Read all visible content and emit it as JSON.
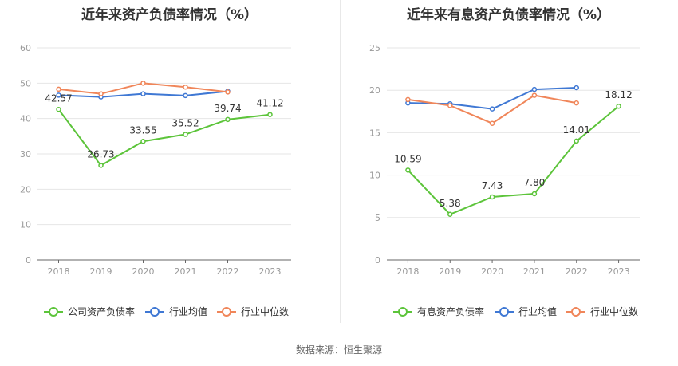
{
  "footer": {
    "source": "数据来源：恒生聚源"
  },
  "chart_data": [
    {
      "type": "line",
      "title": "近年来资产负债率情况（%）",
      "categories": [
        "2018",
        "2019",
        "2020",
        "2021",
        "2022",
        "2023"
      ],
      "ylim": [
        0,
        60
      ],
      "yticks": [
        0,
        10,
        20,
        30,
        40,
        50,
        60
      ],
      "grid": true,
      "legend_position": "bottom",
      "series": [
        {
          "name": "公司资产负债率",
          "color": "#5cc43a",
          "values": [
            42.57,
            26.73,
            33.55,
            35.52,
            39.74,
            41.12
          ],
          "labels": [
            "42.57",
            "26.73",
            "33.55",
            "35.52",
            "39.74",
            "41.12"
          ]
        },
        {
          "name": "行业均值",
          "color": "#3f78d4",
          "values": [
            46.6,
            46.1,
            47.0,
            46.5,
            47.7,
            null
          ]
        },
        {
          "name": "行业中位数",
          "color": "#f0865a",
          "values": [
            48.3,
            47.0,
            50.0,
            48.9,
            47.5,
            null
          ]
        }
      ]
    },
    {
      "type": "line",
      "title": "近年来有息资产负债率情况（%）",
      "categories": [
        "2018",
        "2019",
        "2020",
        "2021",
        "2022",
        "2023"
      ],
      "ylim": [
        0,
        25
      ],
      "yticks": [
        0,
        5,
        10,
        15,
        20,
        25
      ],
      "grid": true,
      "legend_position": "bottom",
      "series": [
        {
          "name": "有息资产负债率",
          "color": "#5cc43a",
          "values": [
            10.59,
            5.38,
            7.43,
            7.8,
            14.01,
            18.12
          ],
          "labels": [
            "10.59",
            "5.38",
            "7.43",
            "7.80",
            "14.01",
            "18.12"
          ]
        },
        {
          "name": "行业均值",
          "color": "#3f78d4",
          "values": [
            18.5,
            18.4,
            17.8,
            20.1,
            20.3,
            null
          ]
        },
        {
          "name": "行业中位数",
          "color": "#f0865a",
          "values": [
            18.9,
            18.2,
            16.1,
            19.4,
            18.5,
            null
          ]
        }
      ]
    }
  ]
}
